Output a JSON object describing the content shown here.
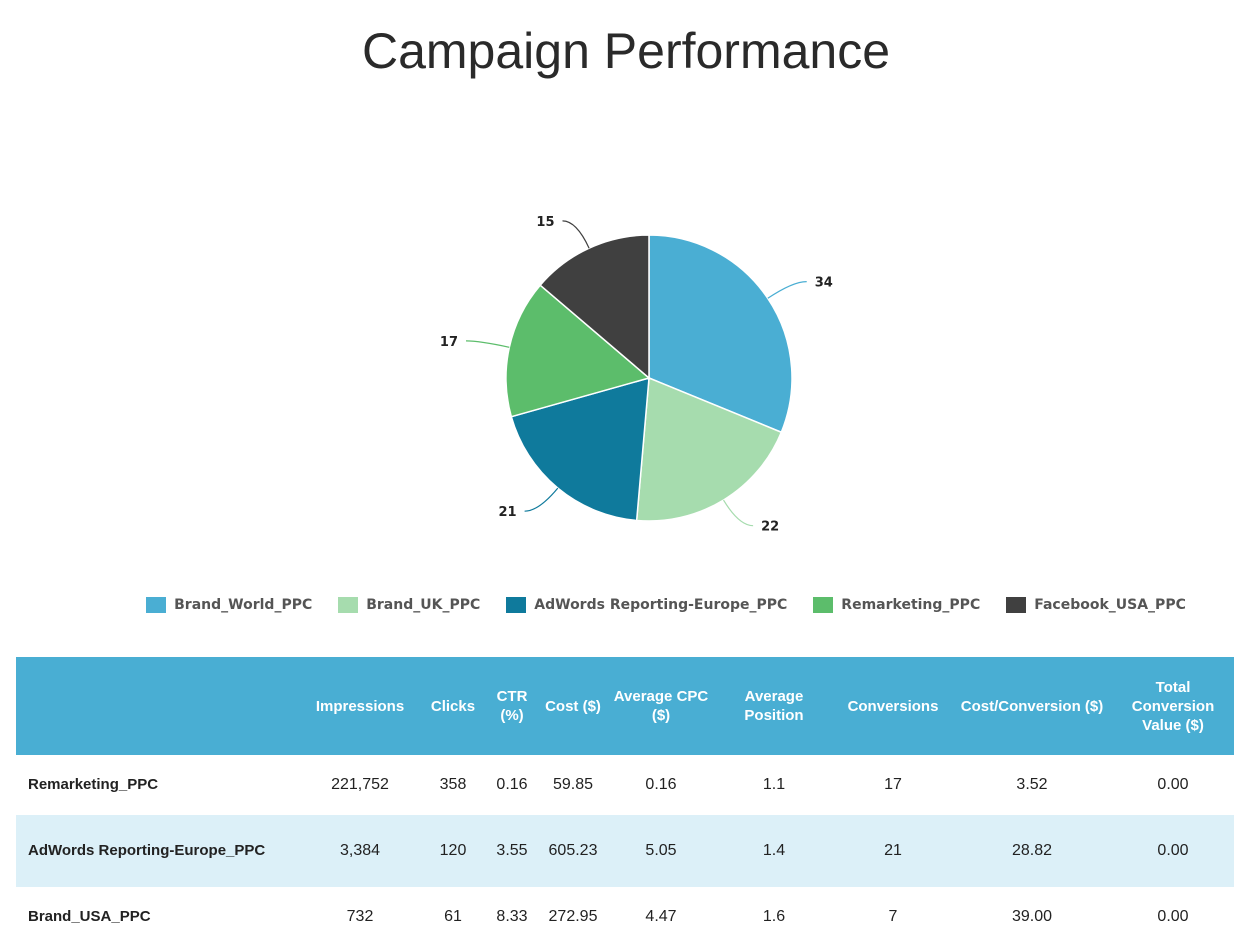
{
  "title": "Campaign Performance",
  "chart_data": {
    "type": "pie",
    "slices": [
      {
        "name": "Brand_World_PPC",
        "value": 34,
        "color": "#4aaed3"
      },
      {
        "name": "Brand_UK_PPC",
        "value": 22,
        "color": "#a6dcae"
      },
      {
        "name": "AdWords Reporting-Europe_PPC",
        "value": 21,
        "color": "#0f7a9c"
      },
      {
        "name": "Remarketing_PPC",
        "value": 17,
        "color": "#5cbd6b"
      },
      {
        "name": "Facebook_USA_PPC",
        "value": 15,
        "color": "#404040"
      }
    ],
    "legend_position": "bottom"
  },
  "table": {
    "columns": [
      "",
      "Impressions",
      "Clicks",
      "CTR (%)",
      "Cost ($)",
      "Average CPC ($)",
      "Average Position",
      "Conversions",
      "Cost/Conversion ($)",
      "Total Conversion Value ($)"
    ],
    "rows": [
      [
        "Remarketing_PPC",
        "221,752",
        "358",
        "0.16",
        "59.85",
        "0.16",
        "1.1",
        "17",
        "3.52",
        "0.00"
      ],
      [
        "AdWords Reporting-Europe_PPC",
        "3,384",
        "120",
        "3.55",
        "605.23",
        "5.05",
        "1.4",
        "21",
        "28.82",
        "0.00"
      ],
      [
        "Brand_USA_PPC",
        "732",
        "61",
        "8.33",
        "272.95",
        "4.47",
        "1.6",
        "7",
        "39.00",
        "0.00"
      ]
    ]
  }
}
